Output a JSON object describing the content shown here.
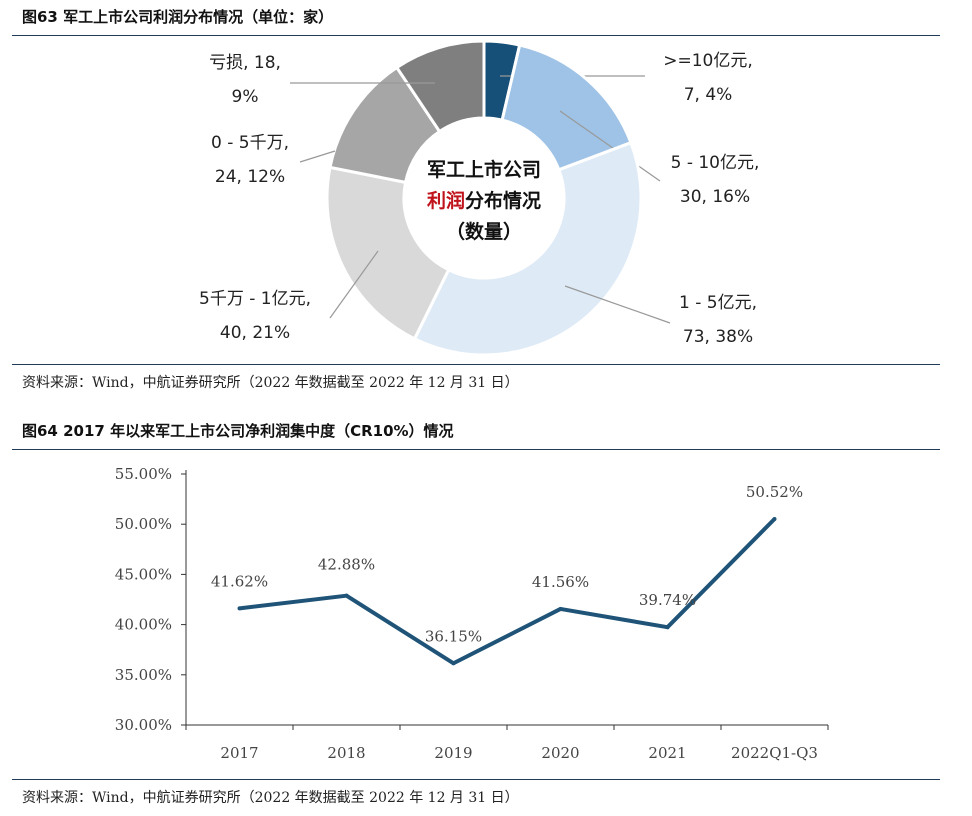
{
  "fig63": {
    "title": "图63 军工上市公司利润分布情况（单位：家）",
    "source": "资料来源：Wind，中航证券研究所（2022 年数据截至 2022 年 12 月 31 日）",
    "center_line1": "军工上市公司",
    "center_line2_red": "利润",
    "center_line2_rest": "分布情况",
    "center_line3": "（数量）"
  },
  "fig64": {
    "title": "图64 2017 年以来军工上市公司净利润集中度（CR10%）情况",
    "source": "资料来源：Wind，中航证券研究所（2022 年数据截至 2022 年 12 月 31 日）"
  },
  "chart_data": [
    {
      "type": "pie",
      "title": "图63 军工上市公司利润分布情况（单位：家）",
      "slices": [
        {
          "label": ">=10亿元",
          "count": 7,
          "percent": "4%",
          "color": "#164f78",
          "label_line1": ">=10亿元,",
          "label_line2": "7, 4%"
        },
        {
          "label": "5 - 10亿元",
          "count": 30,
          "percent": "16%",
          "color": "#9fc3e6",
          "label_line1": "5 - 10亿元,",
          "label_line2": "30, 16%"
        },
        {
          "label": "1 - 5亿元",
          "count": 73,
          "percent": "38%",
          "color": "#deeaf6",
          "label_line1": "1 - 5亿元,",
          "label_line2": "73, 38%"
        },
        {
          "label": "5千万 - 1亿元",
          "count": 40,
          "percent": "21%",
          "color": "#d9d9d9",
          "label_line1": "5千万 - 1亿元,",
          "label_line2": "40, 21%"
        },
        {
          "label": "0 - 5千万",
          "count": 24,
          "percent": "12%",
          "color": "#a6a6a6",
          "label_line1": "0 - 5千万,",
          "label_line2": "24, 12%"
        },
        {
          "label": "亏损",
          "count": 18,
          "percent": "9%",
          "color": "#7f7f7f",
          "label_line1": "亏损, 18,",
          "label_line2": "9%"
        }
      ]
    },
    {
      "type": "line",
      "title": "图64 2017 年以来军工上市公司净利润集中度（CR10%）情况",
      "categories": [
        "2017",
        "2018",
        "2019",
        "2020",
        "2021",
        "2022Q1-Q3"
      ],
      "values": [
        41.62,
        42.88,
        36.15,
        41.56,
        39.74,
        50.52
      ],
      "value_labels": [
        "41.62%",
        "42.88%",
        "36.15%",
        "41.56%",
        "39.74%",
        "50.52%"
      ],
      "ylim": [
        30,
        55
      ],
      "yticks": [
        "30.00%",
        "35.00%",
        "40.00%",
        "45.00%",
        "50.00%",
        "55.00%"
      ],
      "line_color": "#1f5478",
      "grid": false
    }
  ]
}
